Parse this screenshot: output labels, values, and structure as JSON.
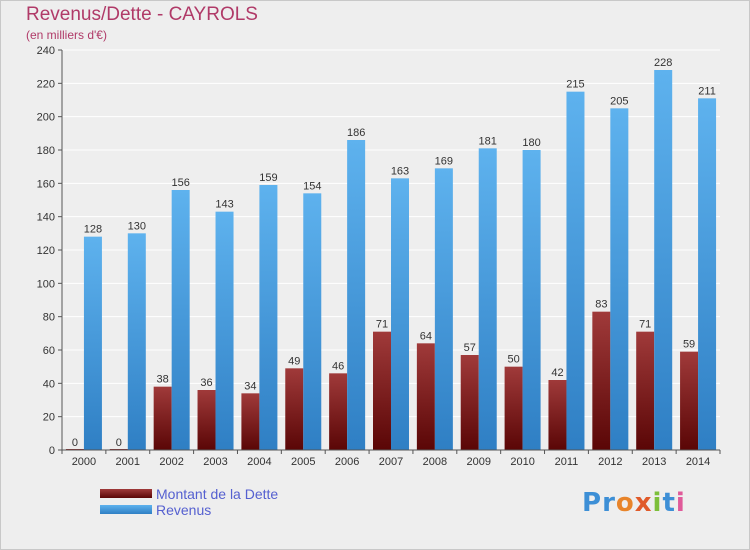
{
  "chart_data": {
    "type": "bar",
    "title": "Revenus/Dette - CAYROLS",
    "subtitle": "(en milliers d'€)",
    "categories": [
      "2000",
      "2001",
      "2002",
      "2003",
      "2004",
      "2005",
      "2006",
      "2007",
      "2008",
      "2009",
      "2010",
      "2011",
      "2012",
      "2013",
      "2014"
    ],
    "series": [
      {
        "name": "Montant de la Dette",
        "color": "#7a1a1a",
        "values": [
          0,
          0,
          38,
          36,
          34,
          49,
          46,
          71,
          64,
          57,
          50,
          42,
          83,
          71,
          59
        ]
      },
      {
        "name": "Revenus",
        "color": "#4da3e6",
        "values": [
          128,
          130,
          156,
          143,
          159,
          154,
          186,
          163,
          169,
          181,
          180,
          215,
          205,
          228,
          211
        ]
      }
    ],
    "ylim": [
      0,
      240
    ],
    "yticks": [
      0,
      20,
      40,
      60,
      80,
      100,
      120,
      140,
      160,
      180,
      200,
      220,
      240
    ],
    "grid": true,
    "legend_position": "bottom-left"
  },
  "logo": {
    "letters": [
      {
        "ch": "P",
        "color": "#3d8fd6"
      },
      {
        "ch": "r",
        "color": "#3d8fd6"
      },
      {
        "ch": "o",
        "color": "#e8842a"
      },
      {
        "ch": "x",
        "color": "#e05a2a"
      },
      {
        "ch": "i",
        "color": "#7cbf3a"
      },
      {
        "ch": "t",
        "color": "#3d8fd6"
      },
      {
        "ch": "i",
        "color": "#e05a9a"
      }
    ]
  }
}
